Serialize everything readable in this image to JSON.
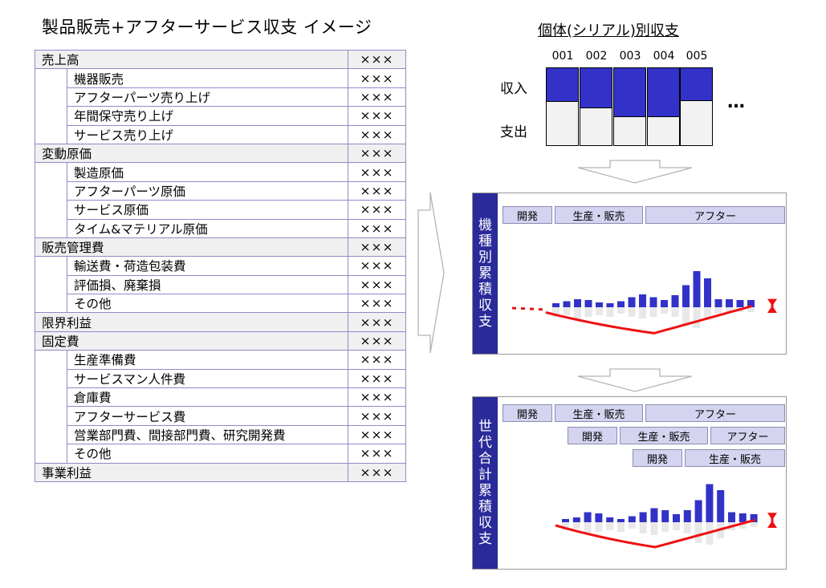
{
  "title": "製品販売+アフターサービス収支 イメージ",
  "pl_table": {
    "rows": [
      {
        "label": "売上高",
        "value": "×××",
        "level": 0
      },
      {
        "label": "機器販売",
        "value": "×××",
        "level": 1
      },
      {
        "label": "アフターパーツ売り上げ",
        "value": "×××",
        "level": 1
      },
      {
        "label": "年間保守売り上げ",
        "value": "×××",
        "level": 1
      },
      {
        "label": "サービス売り上げ",
        "value": "×××",
        "level": 1
      },
      {
        "label": "変動原価",
        "value": "×××",
        "level": 0
      },
      {
        "label": "製造原価",
        "value": "×××",
        "level": 1
      },
      {
        "label": "アフターパーツ原価",
        "value": "×××",
        "level": 1
      },
      {
        "label": "サービス原価",
        "value": "×××",
        "level": 1
      },
      {
        "label": "タイム&マテリアル原価",
        "value": "×××",
        "level": 1
      },
      {
        "label": "販売管理費",
        "value": "×××",
        "level": 0
      },
      {
        "label": "輸送費・荷造包装費",
        "value": "×××",
        "level": 1
      },
      {
        "label": "評価損、廃棄損",
        "value": "×××",
        "level": 1
      },
      {
        "label": "その他",
        "value": "×××",
        "level": 1
      },
      {
        "label": "限界利益",
        "value": "×××",
        "level": 0
      },
      {
        "label": "固定費",
        "value": "×××",
        "level": 0
      },
      {
        "label": "生産準備費",
        "value": "×××",
        "level": 1
      },
      {
        "label": "サービスマン人件費",
        "value": "×××",
        "level": 1
      },
      {
        "label": "倉庫費",
        "value": "×××",
        "level": 1
      },
      {
        "label": "アフターサービス費",
        "value": "×××",
        "level": 1
      },
      {
        "label": "営業部門費、間接部門費、研究開発費",
        "value": "×××",
        "level": 1
      },
      {
        "label": "その他",
        "value": "×××",
        "level": 1
      },
      {
        "label": "事業利益",
        "value": "×××",
        "level": 0
      }
    ]
  },
  "serial": {
    "title": "個体(シリアル)別収支",
    "income_label": "収入",
    "expense_label": "支出",
    "ellipsis": "…",
    "units": [
      {
        "id": "001",
        "income_share": 0.44
      },
      {
        "id": "002",
        "income_share": 0.52
      },
      {
        "id": "003",
        "income_share": 0.64
      },
      {
        "id": "004",
        "income_share": 0.64
      },
      {
        "id": "005",
        "income_share": 0.43
      }
    ],
    "colors": {
      "income": "#3232c8",
      "expense": "#f2f2f2"
    }
  },
  "panel_model": {
    "side_label": "機種別累積収支",
    "phases": [
      "開発",
      "生産・販売",
      "アフター"
    ],
    "bars_up": [
      0.1,
      0.15,
      0.2,
      0.18,
      0.12,
      0.1,
      0.15,
      0.25,
      0.32,
      0.25,
      0.18,
      0.3,
      0.55,
      0.9,
      0.72,
      0.2,
      0.2,
      0.18,
      0.18
    ],
    "bars_down": [
      0.3,
      0.25,
      0.35,
      0.3,
      0.25,
      0.3,
      0.2,
      0.3,
      0.35,
      0.3,
      0.2,
      0.3,
      0.6,
      0.65,
      0.4,
      0.2,
      0.18,
      0.15,
      0.15
    ],
    "colors": {
      "bar": "#3232c8",
      "bar_down": "#e8e8e8",
      "line": "#ee1111",
      "side": "#2a2a9a"
    }
  },
  "panel_generation": {
    "side_label": "世代合計累積収支",
    "phase_rows": [
      [
        "開発",
        "生産・販売",
        "アフター"
      ],
      [
        "開発",
        "生産・販売",
        "アフター"
      ],
      [
        "開発",
        "生産・販売"
      ]
    ],
    "bars_up": [
      0.08,
      0.12,
      0.25,
      0.22,
      0.12,
      0.08,
      0.15,
      0.25,
      0.35,
      0.3,
      0.2,
      0.3,
      0.55,
      0.95,
      0.8,
      0.25,
      0.22,
      0.2
    ],
    "bars_down": [
      0.25,
      0.2,
      0.35,
      0.3,
      0.25,
      0.3,
      0.2,
      0.35,
      0.4,
      0.3,
      0.25,
      0.35,
      0.65,
      0.7,
      0.5,
      0.25,
      0.2,
      0.15
    ]
  }
}
